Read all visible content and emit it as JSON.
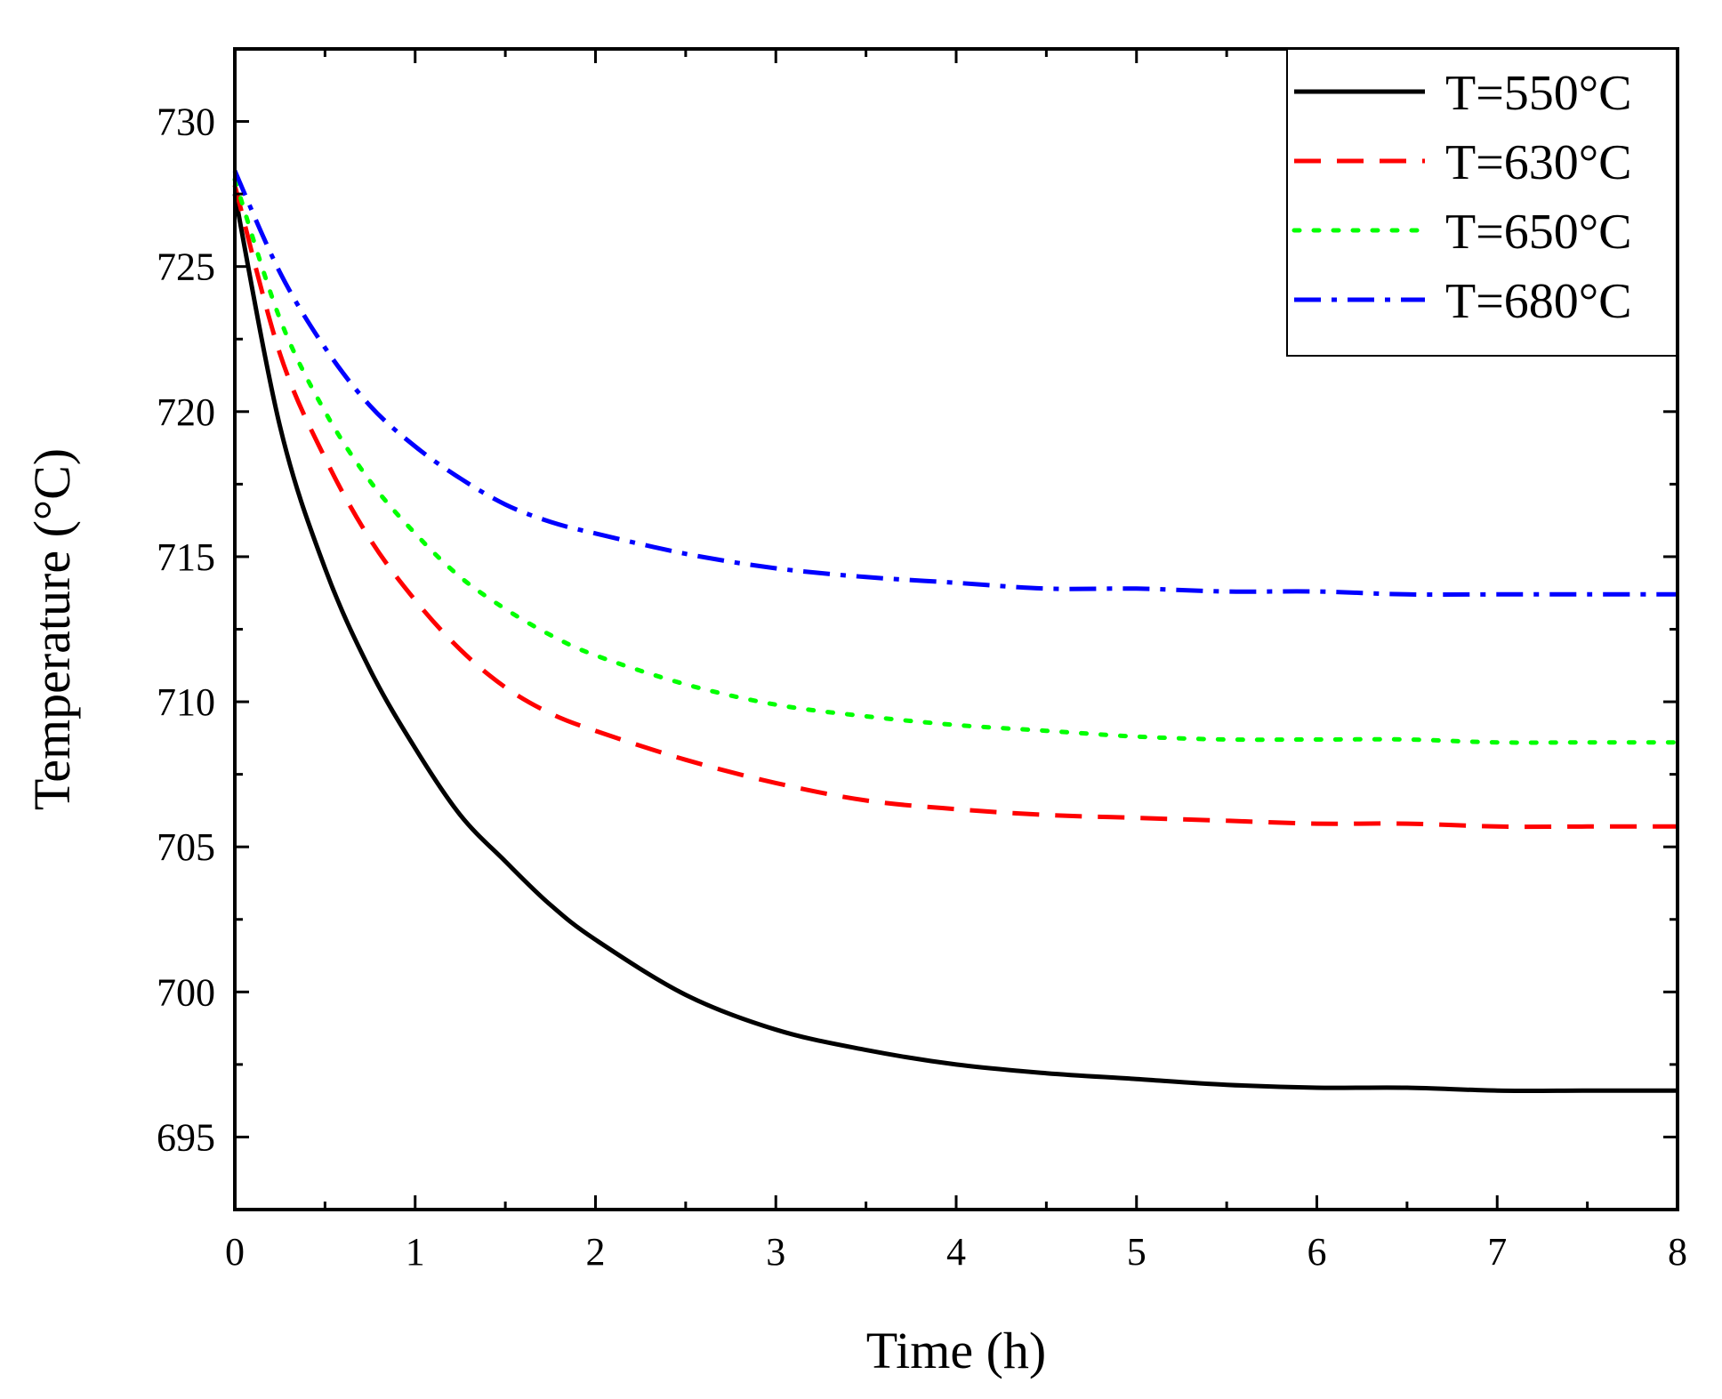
{
  "chart_data": {
    "type": "line",
    "xlabel": "Time (h)",
    "ylabel": "Temperature (°C)",
    "xlim": [
      0,
      8
    ],
    "ylim": [
      692.5,
      732.5
    ],
    "xticks": [
      "0",
      "1",
      "2",
      "3",
      "4",
      "5",
      "6",
      "7",
      "8"
    ],
    "yticks": [
      "695",
      "700",
      "705",
      "710",
      "715",
      "720",
      "725",
      "730"
    ],
    "legend_position": "top-right",
    "grid": false,
    "series": [
      {
        "name": "T=550°C",
        "color": "#000000",
        "style": "solid",
        "x": [
          0,
          0.25,
          0.5,
          0.75,
          1,
          1.25,
          1.5,
          1.75,
          2,
          2.5,
          3,
          3.5,
          4,
          4.5,
          5,
          5.5,
          6,
          6.5,
          7,
          7.5,
          8
        ],
        "y": [
          727.5,
          719.5,
          714.6,
          711.1,
          708.4,
          706.1,
          704.5,
          703.0,
          701.8,
          699.9,
          698.7,
          698.0,
          697.5,
          697.2,
          697.0,
          696.8,
          696.7,
          696.7,
          696.6,
          696.6,
          696.6
        ]
      },
      {
        "name": "T=630°C",
        "color": "#ff0000",
        "style": "dashed",
        "x": [
          0,
          0.25,
          0.5,
          0.75,
          1,
          1.25,
          1.5,
          1.75,
          2,
          2.5,
          3,
          3.5,
          4,
          4.5,
          5,
          5.5,
          6,
          6.5,
          7,
          7.5,
          8
        ],
        "y": [
          727.8,
          722.0,
          718.4,
          715.6,
          713.5,
          711.8,
          710.5,
          709.6,
          709.0,
          708.0,
          707.2,
          706.6,
          706.3,
          706.1,
          706.0,
          705.9,
          705.8,
          705.8,
          705.7,
          705.7,
          705.7
        ]
      },
      {
        "name": "T=650°C",
        "color": "#00ff00",
        "style": "dotted",
        "x": [
          0,
          0.25,
          0.5,
          0.75,
          1,
          1.25,
          1.5,
          1.75,
          2,
          2.5,
          3,
          3.5,
          4,
          4.5,
          5,
          5.5,
          6,
          6.5,
          7,
          7.5,
          8
        ],
        "y": [
          728.0,
          723.2,
          720.0,
          717.6,
          715.8,
          714.3,
          713.2,
          712.3,
          711.6,
          710.6,
          709.9,
          709.5,
          709.2,
          709.0,
          708.8,
          708.7,
          708.7,
          708.7,
          708.6,
          708.6,
          708.6
        ]
      },
      {
        "name": "T=680°C",
        "color": "#0000ff",
        "style": "dashdot",
        "x": [
          0,
          0.25,
          0.5,
          0.75,
          1,
          1.25,
          1.5,
          1.75,
          2,
          2.5,
          3,
          3.5,
          4,
          4.5,
          5,
          5.5,
          6,
          6.5,
          7,
          7.5,
          8
        ],
        "y": [
          728.3,
          724.8,
          722.2,
          720.2,
          718.8,
          717.7,
          716.8,
          716.2,
          715.8,
          715.1,
          714.6,
          714.3,
          714.1,
          713.9,
          713.9,
          713.8,
          713.8,
          713.7,
          713.7,
          713.7,
          713.7
        ]
      }
    ]
  }
}
